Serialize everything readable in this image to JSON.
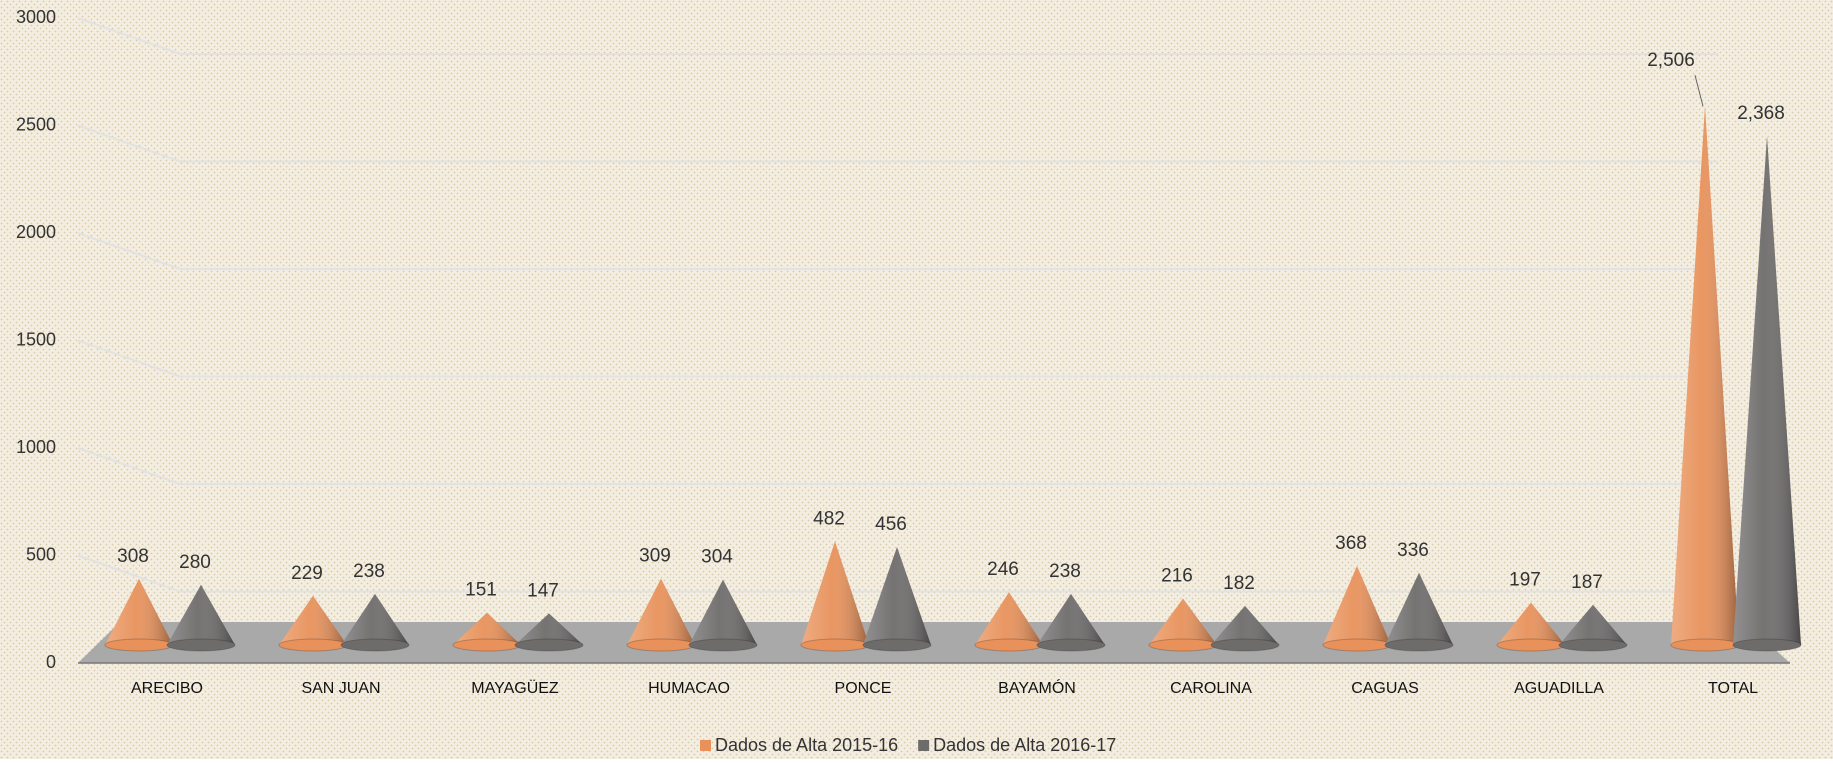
{
  "chart_data": {
    "type": "bar",
    "categories": [
      "ARECIBO",
      "SAN JUAN",
      "MAYAGÜEZ",
      "HUMACAO",
      "PONCE",
      "BAYAMÓN",
      "CAROLINA",
      "CAGUAS",
      "AGUADILLA",
      "TOTAL"
    ],
    "series": [
      {
        "name": "Dados de Alta 2015-16",
        "color": "#e8915a",
        "values": [
          308,
          229,
          151,
          309,
          482,
          246,
          216,
          368,
          197,
          2506
        ],
        "value_labels": [
          "308",
          "229",
          "151",
          "309",
          "482",
          "246",
          "216",
          "368",
          "197",
          "2,506"
        ]
      },
      {
        "name": "Dados de Alta 2016-17",
        "color": "#6e6b6b",
        "values": [
          280,
          238,
          147,
          304,
          456,
          238,
          182,
          336,
          187,
          2368
        ],
        "value_labels": [
          "280",
          "238",
          "147",
          "304",
          "456",
          "238",
          "182",
          "336",
          "187",
          "2,368"
        ]
      }
    ],
    "ylim": [
      0,
      3000
    ],
    "yticks": [
      0,
      500,
      1000,
      1500,
      2000,
      2500,
      3000
    ],
    "grid": true,
    "legend": "bottom"
  }
}
